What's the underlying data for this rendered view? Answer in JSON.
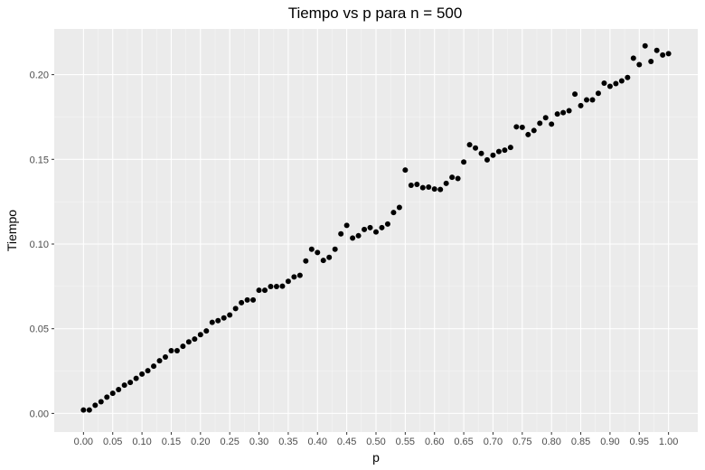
{
  "chart_data": {
    "type": "scatter",
    "title": "Tiempo vs p para n = 500",
    "xlabel": "p",
    "ylabel": "Tiempo",
    "xlim": [
      -0.05,
      1.05
    ],
    "ylim": [
      -0.011,
      0.227
    ],
    "x_ticks": [
      0.0,
      0.05,
      0.1,
      0.15,
      0.2,
      0.25,
      0.3,
      0.35,
      0.4,
      0.45,
      0.5,
      0.55,
      0.6,
      0.65,
      0.7,
      0.75,
      0.8,
      0.85,
      0.9,
      0.95,
      1.0
    ],
    "x_tick_labels": [
      "0.00",
      "0.05",
      "0.10",
      "0.15",
      "0.20",
      "0.25",
      "0.30",
      "0.35",
      "0.40",
      "0.45",
      "0.50",
      "0.55",
      "0.60",
      "0.65",
      "0.70",
      "0.75",
      "0.80",
      "0.85",
      "0.90",
      "0.95",
      "1.00"
    ],
    "y_ticks": [
      0.0,
      0.05,
      0.1,
      0.15,
      0.2
    ],
    "y_tick_labels": [
      "0.00",
      "0.05",
      "0.10",
      "0.15",
      "0.20"
    ],
    "grid": true,
    "background": "#ebebeb",
    "point_color": "#000000",
    "points": [
      [
        0.0,
        0.002
      ],
      [
        0.01,
        0.002
      ],
      [
        0.02,
        0.0048
      ],
      [
        0.03,
        0.0069
      ],
      [
        0.04,
        0.0096
      ],
      [
        0.05,
        0.0119
      ],
      [
        0.06,
        0.0141
      ],
      [
        0.07,
        0.0167
      ],
      [
        0.08,
        0.0183
      ],
      [
        0.09,
        0.0207
      ],
      [
        0.1,
        0.0232
      ],
      [
        0.11,
        0.0252
      ],
      [
        0.12,
        0.0279
      ],
      [
        0.13,
        0.0311
      ],
      [
        0.14,
        0.0333
      ],
      [
        0.15,
        0.037
      ],
      [
        0.16,
        0.037
      ],
      [
        0.17,
        0.0396
      ],
      [
        0.18,
        0.0422
      ],
      [
        0.19,
        0.0439
      ],
      [
        0.2,
        0.0465
      ],
      [
        0.21,
        0.0487
      ],
      [
        0.22,
        0.0538
      ],
      [
        0.23,
        0.0548
      ],
      [
        0.24,
        0.0564
      ],
      [
        0.25,
        0.0581
      ],
      [
        0.26,
        0.0619
      ],
      [
        0.27,
        0.0654
      ],
      [
        0.28,
        0.067
      ],
      [
        0.29,
        0.067
      ],
      [
        0.3,
        0.0727
      ],
      [
        0.31,
        0.0727
      ],
      [
        0.32,
        0.0749
      ],
      [
        0.33,
        0.0749
      ],
      [
        0.34,
        0.0751
      ],
      [
        0.35,
        0.078
      ],
      [
        0.36,
        0.0806
      ],
      [
        0.37,
        0.0815
      ],
      [
        0.38,
        0.09
      ],
      [
        0.39,
        0.0969
      ],
      [
        0.4,
        0.095
      ],
      [
        0.41,
        0.0903
      ],
      [
        0.42,
        0.0921
      ],
      [
        0.43,
        0.0969
      ],
      [
        0.44,
        0.106
      ],
      [
        0.45,
        0.111
      ],
      [
        0.46,
        0.1035
      ],
      [
        0.47,
        0.1049
      ],
      [
        0.48,
        0.1086
      ],
      [
        0.49,
        0.1097
      ],
      [
        0.5,
        0.1071
      ],
      [
        0.51,
        0.1097
      ],
      [
        0.52,
        0.1118
      ],
      [
        0.53,
        0.1186
      ],
      [
        0.54,
        0.1216
      ],
      [
        0.55,
        0.1437
      ],
      [
        0.56,
        0.1347
      ],
      [
        0.57,
        0.1352
      ],
      [
        0.58,
        0.1333
      ],
      [
        0.59,
        0.1336
      ],
      [
        0.6,
        0.1325
      ],
      [
        0.61,
        0.1322
      ],
      [
        0.62,
        0.1358
      ],
      [
        0.63,
        0.1394
      ],
      [
        0.64,
        0.1387
      ],
      [
        0.65,
        0.1484
      ],
      [
        0.66,
        0.1586
      ],
      [
        0.67,
        0.1567
      ],
      [
        0.68,
        0.1535
      ],
      [
        0.69,
        0.1497
      ],
      [
        0.7,
        0.1524
      ],
      [
        0.71,
        0.1546
      ],
      [
        0.72,
        0.1554
      ],
      [
        0.73,
        0.157
      ],
      [
        0.74,
        0.1692
      ],
      [
        0.75,
        0.1689
      ],
      [
        0.76,
        0.1646
      ],
      [
        0.77,
        0.167
      ],
      [
        0.78,
        0.1713
      ],
      [
        0.79,
        0.1746
      ],
      [
        0.8,
        0.1708
      ],
      [
        0.81,
        0.1768
      ],
      [
        0.82,
        0.1776
      ],
      [
        0.83,
        0.1787
      ],
      [
        0.84,
        0.1885
      ],
      [
        0.85,
        0.1817
      ],
      [
        0.86,
        0.1851
      ],
      [
        0.87,
        0.1851
      ],
      [
        0.88,
        0.189
      ],
      [
        0.89,
        0.195
      ],
      [
        0.9,
        0.1931
      ],
      [
        0.91,
        0.1947
      ],
      [
        0.92,
        0.1963
      ],
      [
        0.93,
        0.1983
      ],
      [
        0.94,
        0.2097
      ],
      [
        0.95,
        0.2059
      ],
      [
        0.96,
        0.217
      ],
      [
        0.97,
        0.2078
      ],
      [
        0.98,
        0.2143
      ],
      [
        0.99,
        0.2116
      ],
      [
        1.0,
        0.2124
      ]
    ]
  }
}
